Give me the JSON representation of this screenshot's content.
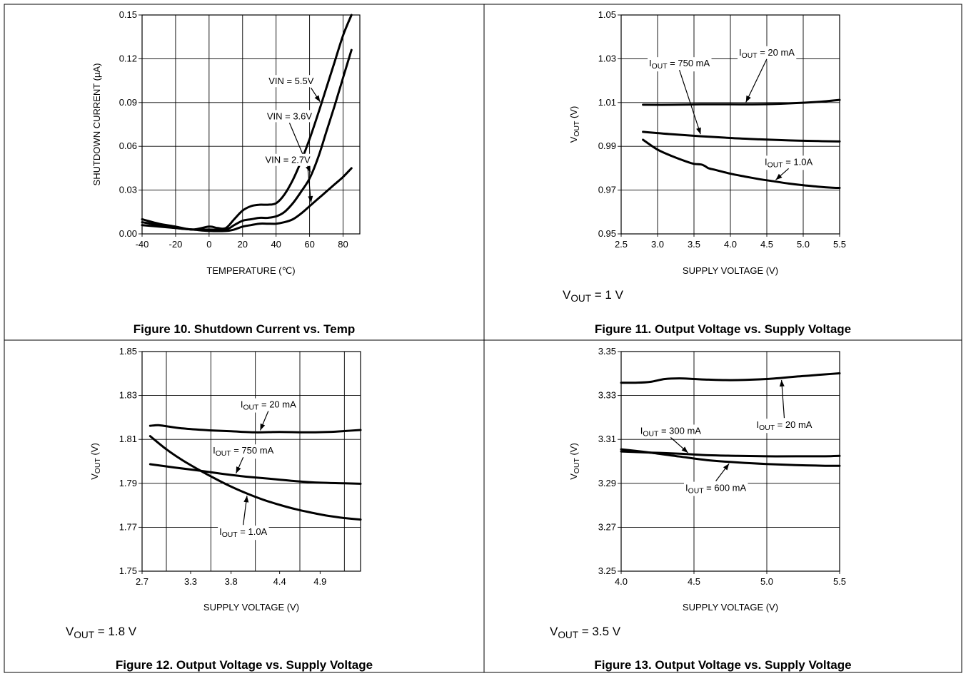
{
  "chart_data": [
    {
      "type": "line",
      "caption": "Figure 10. Shutdown Current vs. Temp",
      "note": "",
      "xlabel": "TEMPERATURE (℃)",
      "ylabel": "SHUTDOWN CURRENT (µA)",
      "xlim": [
        -40,
        90
      ],
      "ylim": [
        0,
        0.15
      ],
      "xticks": [
        "-40",
        "-20",
        "0",
        "20",
        "40",
        "60",
        "80"
      ],
      "xtick_values": [
        -40,
        -20,
        0,
        20,
        40,
        60,
        80
      ],
      "yticks": [
        "0.00",
        "0.03",
        "0.06",
        "0.09",
        "0.12",
        "0.15"
      ],
      "ytick_values": [
        0,
        0.03,
        0.06,
        0.09,
        0.12,
        0.15
      ],
      "xgrid": [
        -40,
        -20,
        0,
        20,
        40,
        60,
        80
      ],
      "ygrid": [
        0,
        0.03,
        0.06,
        0.09,
        0.12,
        0.15
      ],
      "series": [
        {
          "name": "VIN = 5.5V",
          "x": [
            -40,
            -30,
            -20,
            -10,
            0,
            5,
            10,
            15,
            20,
            25,
            30,
            35,
            40,
            45,
            50,
            55,
            60,
            65,
            70,
            75,
            80,
            85
          ],
          "y": [
            0.01,
            0.007,
            0.005,
            0.003,
            0.005,
            0.004,
            0.004,
            0.01,
            0.016,
            0.019,
            0.02,
            0.02,
            0.021,
            0.027,
            0.037,
            0.05,
            0.065,
            0.082,
            0.1,
            0.118,
            0.136,
            0.15
          ]
        },
        {
          "name": "VIN = 3.6V",
          "x": [
            -40,
            -30,
            -20,
            -10,
            0,
            10,
            15,
            20,
            25,
            30,
            35,
            40,
            45,
            50,
            55,
            60,
            65,
            70,
            75,
            80,
            85
          ],
          "y": [
            0.008,
            0.006,
            0.004,
            0.003,
            0.003,
            0.003,
            0.006,
            0.009,
            0.01,
            0.011,
            0.011,
            0.012,
            0.015,
            0.021,
            0.029,
            0.038,
            0.052,
            0.07,
            0.088,
            0.107,
            0.126
          ]
        },
        {
          "name": "VIN = 2.7V",
          "x": [
            -40,
            -30,
            -20,
            -10,
            0,
            10,
            15,
            20,
            25,
            30,
            35,
            40,
            45,
            50,
            55,
            60,
            65,
            70,
            75,
            80,
            85
          ],
          "y": [
            0.006,
            0.005,
            0.004,
            0.003,
            0.002,
            0.002,
            0.003,
            0.005,
            0.006,
            0.007,
            0.007,
            0.007,
            0.008,
            0.01,
            0.014,
            0.019,
            0.024,
            0.029,
            0.034,
            0.039,
            0.045
          ]
        }
      ],
      "annotations": [
        {
          "text": "VIN = 5.5V",
          "series": 0,
          "at_x": 67,
          "label_x": 49,
          "label_y": 0.1025
        },
        {
          "text": "VIN = 3.6V",
          "series": 1,
          "at_x": 61,
          "label_x": 48,
          "label_y": 0.0785
        },
        {
          "text": "VIN = 2.7V",
          "series": 2,
          "at_x": 61,
          "label_x": 47,
          "label_y": 0.0485
        }
      ]
    },
    {
      "type": "line",
      "caption": "Figure 11. Output Voltage vs. Supply Voltage",
      "note": "V_OUT = 1 V",
      "xlabel": "SUPPLY VOLTAGE (V)",
      "ylabel": "V_OUT (V)",
      "xlim": [
        2.5,
        5.5
      ],
      "ylim": [
        0.95,
        1.05
      ],
      "xticks": [
        "2.5",
        "3.0",
        "3.5",
        "4.0",
        "4.5",
        "5.0",
        "5.5"
      ],
      "xtick_values": [
        2.5,
        3.0,
        3.5,
        4.0,
        4.5,
        5.0,
        5.5
      ],
      "yticks": [
        "0.95",
        "0.97",
        "0.99",
        "1.01",
        "1.03",
        "1.05"
      ],
      "ytick_values": [
        0.95,
        0.97,
        0.99,
        1.01,
        1.03,
        1.05
      ],
      "xgrid": [
        2.5,
        3.0,
        3.5,
        4.0,
        4.5,
        5.0,
        5.5
      ],
      "ygrid": [
        0.95,
        0.97,
        0.99,
        1.01,
        1.03,
        1.05
      ],
      "series": [
        {
          "name": "I_OUT = 20 mA",
          "x": [
            2.8,
            3.2,
            3.6,
            4.0,
            4.4,
            4.8,
            5.2,
            5.5
          ],
          "y": [
            1.009,
            1.009,
            1.0092,
            1.0092,
            1.0092,
            1.0096,
            1.0103,
            1.0112
          ]
        },
        {
          "name": "I_OUT = 750 mA",
          "x": [
            2.8,
            3.2,
            3.6,
            4.0,
            4.4,
            4.8,
            5.2,
            5.5
          ],
          "y": [
            0.9966,
            0.9955,
            0.9946,
            0.9938,
            0.9932,
            0.9927,
            0.9924,
            0.9922
          ]
        },
        {
          "name": "I_OUT = 1.0A",
          "x": [
            2.8,
            3.0,
            3.2,
            3.4,
            3.5,
            3.6,
            3.65,
            3.7,
            3.8,
            4.0,
            4.2,
            4.4,
            4.6,
            4.8,
            5.0,
            5.2,
            5.4,
            5.5
          ],
          "y": [
            0.993,
            0.9885,
            0.9855,
            0.983,
            0.982,
            0.9817,
            0.981,
            0.98,
            0.9792,
            0.9775,
            0.9762,
            0.975,
            0.974,
            0.973,
            0.9722,
            0.9716,
            0.9711,
            0.971
          ]
        }
      ],
      "annotations": [
        {
          "text": "I_OUT = 20 mA",
          "series": 0,
          "at_x": 4.2,
          "label_x": 4.5,
          "label_y": 1.0315
        },
        {
          "text": "I_OUT = 750 mA",
          "series": 1,
          "at_x": 3.6,
          "label_x": 3.3,
          "label_y": 1.0265
        },
        {
          "text": "I_OUT = 1.0A",
          "series": 2,
          "at_x": 4.6,
          "label_x": 4.8,
          "label_y": 0.9815
        }
      ]
    },
    {
      "type": "line",
      "caption": "Figure 12. Output Voltage vs. Supply Voltage",
      "note": "V_OUT = 1.8 V",
      "xlabel": "SUPPLY VOLTAGE (V)",
      "ylabel": "V_OUT (V)",
      "xlim": [
        2.7,
        5.4
      ],
      "ylim": [
        1.75,
        1.85
      ],
      "xticks": [
        "2.7",
        "3.3",
        "3.8",
        "4.4",
        "4.9"
      ],
      "xtick_values": [
        2.7,
        3.3,
        3.8,
        4.4,
        4.9
      ],
      "yticks": [
        "1.75",
        "1.77",
        "1.79",
        "1.81",
        "1.83",
        "1.85"
      ],
      "ytick_values": [
        1.75,
        1.77,
        1.79,
        1.81,
        1.83,
        1.85
      ],
      "xgrid": [
        3.0,
        3.55,
        4.1,
        4.65,
        5.2
      ],
      "ygrid": [
        1.75,
        1.77,
        1.79,
        1.81,
        1.83,
        1.85
      ],
      "series": [
        {
          "name": "I_OUT = 20 mA",
          "x": [
            2.8,
            2.9,
            3.0,
            3.2,
            3.5,
            3.8,
            4.1,
            4.4,
            4.7,
            5.0,
            5.2,
            5.4
          ],
          "y": [
            1.8162,
            1.8165,
            1.816,
            1.815,
            1.8142,
            1.8137,
            1.8132,
            1.8134,
            1.8132,
            1.8134,
            1.8138,
            1.8143
          ]
        },
        {
          "name": "I_OUT = 750 mA",
          "x": [
            2.8,
            3.1,
            3.4,
            3.7,
            4.0,
            4.3,
            4.6,
            4.9,
            5.2,
            5.4
          ],
          "y": [
            1.7987,
            1.7972,
            1.7958,
            1.7943,
            1.793,
            1.792,
            1.791,
            1.7903,
            1.79,
            1.7898
          ]
        },
        {
          "name": "I_OUT = 1.0A",
          "x": [
            2.8,
            3.0,
            3.2,
            3.4,
            3.6,
            3.8,
            4.0,
            4.2,
            4.4,
            4.6,
            4.8,
            5.0,
            5.2,
            5.4
          ],
          "y": [
            1.8115,
            1.8055,
            1.8005,
            1.7962,
            1.7922,
            1.7885,
            1.7853,
            1.7825,
            1.7802,
            1.7782,
            1.7766,
            1.7752,
            1.7742,
            1.7735
          ]
        }
      ],
      "annotations": [
        {
          "text": "I_OUT = 20 mA",
          "series": 0,
          "at_x": 4.15,
          "label_x": 4.26,
          "label_y": 1.8245
        },
        {
          "text": "I_OUT = 750 mA",
          "series": 1,
          "at_x": 3.85,
          "label_x": 3.95,
          "label_y": 1.8035
        },
        {
          "text": "I_OUT = 1.0A",
          "series": 2,
          "at_x": 4.0,
          "label_x": 3.95,
          "label_y": 1.7665
        }
      ]
    },
    {
      "type": "line",
      "caption": "Figure 13. Output Voltage vs. Supply Voltage",
      "note": "V_OUT = 3.5 V",
      "xlabel": "SUPPLY VOLTAGE (V)",
      "ylabel": "V_OUT (V)",
      "xlim": [
        4.0,
        5.5
      ],
      "ylim": [
        3.25,
        3.35
      ],
      "xticks": [
        "4.0",
        "4.5",
        "5.0",
        "5.5"
      ],
      "xtick_values": [
        4.0,
        4.5,
        5.0,
        5.5
      ],
      "yticks": [
        "3.25",
        "3.27",
        "3.29",
        "3.31",
        "3.33",
        "3.35"
      ],
      "ytick_values": [
        3.25,
        3.27,
        3.29,
        3.31,
        3.33,
        3.35
      ],
      "xgrid": [
        4.0,
        4.5,
        5.0,
        5.5
      ],
      "ygrid": [
        3.25,
        3.27,
        3.29,
        3.31,
        3.33,
        3.35
      ],
      "series": [
        {
          "name": "I_OUT = 20 mA",
          "x": [
            4.0,
            4.1,
            4.2,
            4.3,
            4.4,
            4.5,
            4.6,
            4.7,
            4.8,
            4.9,
            5.0,
            5.1,
            5.2,
            5.3,
            5.4,
            5.5
          ],
          "y": [
            3.3358,
            3.3358,
            3.3362,
            3.3375,
            3.3378,
            3.3375,
            3.3372,
            3.337,
            3.337,
            3.3372,
            3.3375,
            3.338,
            3.3386,
            3.3391,
            3.3396,
            3.3401
          ]
        },
        {
          "name": "I_OUT = 300 mA",
          "x": [
            4.0,
            4.2,
            4.4,
            4.6,
            4.8,
            5.0,
            5.2,
            5.4,
            5.5
          ],
          "y": [
            3.3045,
            3.304,
            3.3035,
            3.3028,
            3.3025,
            3.3023,
            3.3023,
            3.3023,
            3.3025
          ]
        },
        {
          "name": "I_OUT = 600 mA",
          "x": [
            4.0,
            4.2,
            4.4,
            4.6,
            4.8,
            5.0,
            5.2,
            5.4,
            5.5
          ],
          "y": [
            3.3055,
            3.304,
            3.3022,
            3.3005,
            3.2995,
            3.2988,
            3.2983,
            3.298,
            3.298
          ]
        }
      ],
      "annotations": [
        {
          "text": "I_OUT = 20 mA",
          "series": 0,
          "at_x": 5.1,
          "label_x": 5.12,
          "label_y": 3.3152
        },
        {
          "text": "I_OUT = 300 mA",
          "series": 1,
          "at_x": 4.47,
          "label_x": 4.34,
          "label_y": 3.3125
        },
        {
          "text": "I_OUT = 600 mA",
          "series": 2,
          "at_x": 4.75,
          "label_x": 4.65,
          "label_y": 3.2865
        }
      ]
    }
  ]
}
